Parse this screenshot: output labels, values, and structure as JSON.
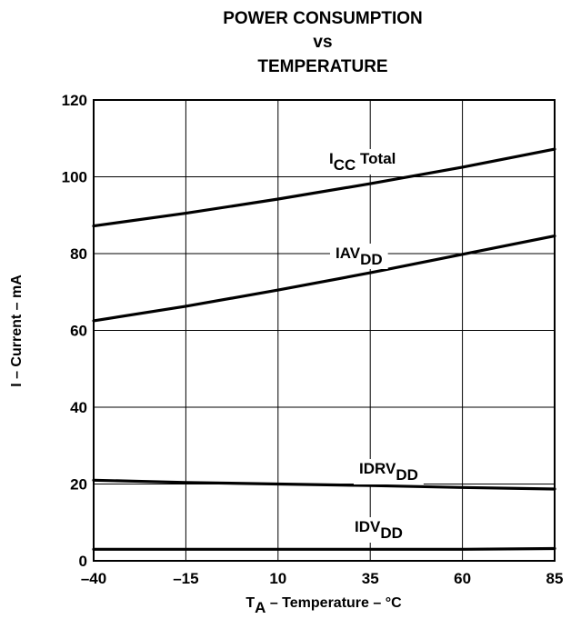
{
  "chart_data": {
    "type": "line",
    "title": [
      "POWER CONSUMPTION",
      "vs",
      "TEMPERATURE"
    ],
    "xlabel": {
      "main": "T",
      "sub": "A",
      "rest": " – Temperature – °C"
    },
    "ylabel": "I – Current – mA",
    "xlim": [
      -40,
      85
    ],
    "ylim": [
      0,
      120
    ],
    "x_ticks": [
      -40,
      -15,
      10,
      35,
      60,
      85
    ],
    "x_tick_labels": [
      "–40",
      "–15",
      "10",
      "35",
      "60",
      "85"
    ],
    "y_ticks": [
      0,
      20,
      40,
      60,
      80,
      100,
      120
    ],
    "y_tick_labels": [
      "0",
      "20",
      "40",
      "60",
      "80",
      "100",
      "120"
    ],
    "grid": true,
    "series": [
      {
        "name": {
          "main": "I",
          "sub": "CC",
          "rest": " Total"
        },
        "x": [
          -40,
          -15,
          10,
          35,
          60,
          85
        ],
        "y": [
          87.2,
          90.5,
          94.2,
          98.2,
          102.5,
          107.2
        ]
      },
      {
        "name": {
          "main": "IAV",
          "sub": "DD",
          "rest": ""
        },
        "x": [
          -40,
          -15,
          10,
          35,
          60,
          85
        ],
        "y": [
          62.5,
          66.3,
          70.5,
          75.0,
          79.8,
          84.6
        ]
      },
      {
        "name": {
          "main": "IDRV",
          "sub": "DD",
          "rest": ""
        },
        "x": [
          -40,
          -15,
          10,
          35,
          60,
          85
        ],
        "y": [
          21.0,
          20.4,
          20.0,
          19.6,
          19.1,
          18.7
        ]
      },
      {
        "name": {
          "main": "IDV",
          "sub": "DD",
          "rest": ""
        },
        "x": [
          -40,
          -15,
          10,
          35,
          60,
          85
        ],
        "y": [
          3.0,
          3.0,
          3.0,
          3.0,
          3.0,
          3.2
        ]
      }
    ]
  }
}
